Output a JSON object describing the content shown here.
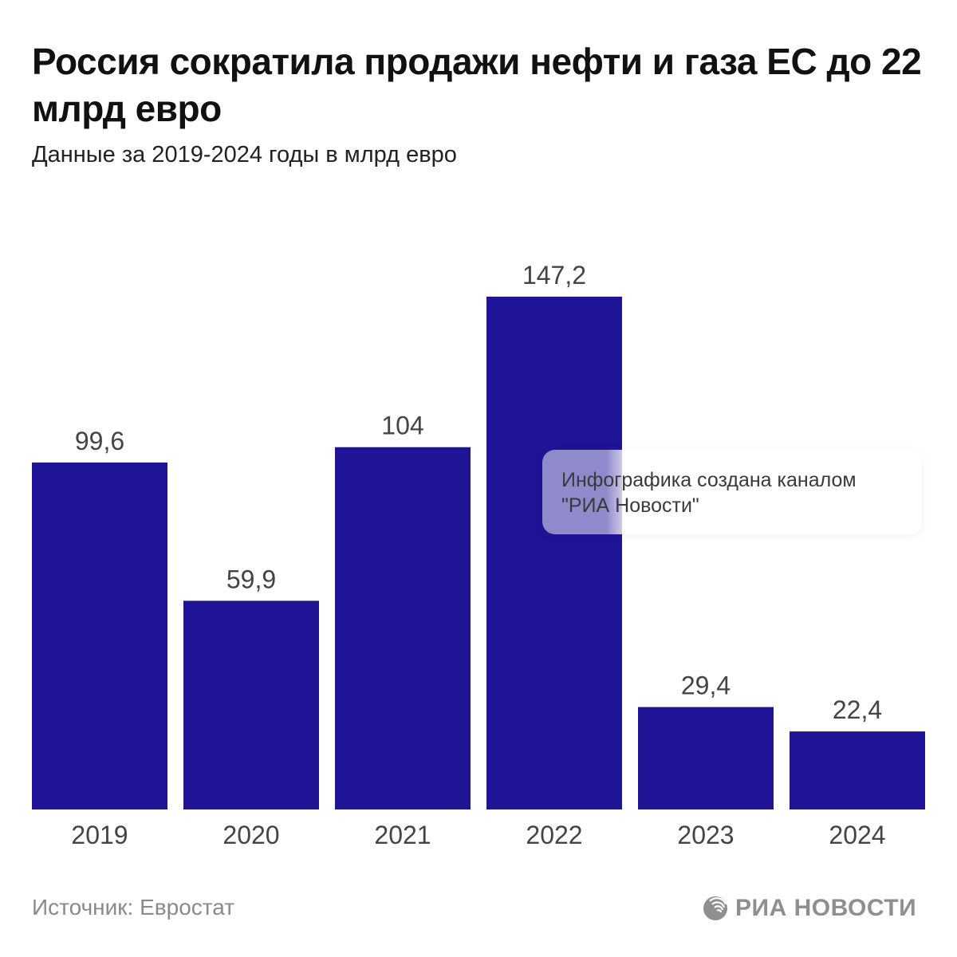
{
  "header": {
    "title": "Россия сократила продажи нефти и газа ЕС до 22 млрд евро",
    "subtitle": "Данные за 2019-2024 годы в млрд евро"
  },
  "overlay": {
    "line1": "Инфографика создана каналом",
    "line2": "\"РИА Новости\""
  },
  "footer": {
    "source": "Источник: Евростат",
    "logo_text": "РИА НОВОСТИ"
  },
  "colors": {
    "bar": "#1f1496",
    "label": "#444444"
  },
  "chart_data": {
    "type": "bar",
    "title": "Россия сократила продажи нефти и газа ЕС до 22 млрд евро",
    "subtitle": "Данные за 2019-2024 годы в млрд евро",
    "xlabel": "",
    "ylabel": "",
    "categories": [
      "2019",
      "2020",
      "2021",
      "2022",
      "2023",
      "2024"
    ],
    "values": [
      99.6,
      59.9,
      104,
      147.2,
      29.4,
      22.4
    ],
    "value_labels": [
      "99,6",
      "59,9",
      "104",
      "147,2",
      "29,4",
      "22,4"
    ],
    "ylim": [
      0,
      147.2
    ],
    "grid": false,
    "legend": "none"
  }
}
